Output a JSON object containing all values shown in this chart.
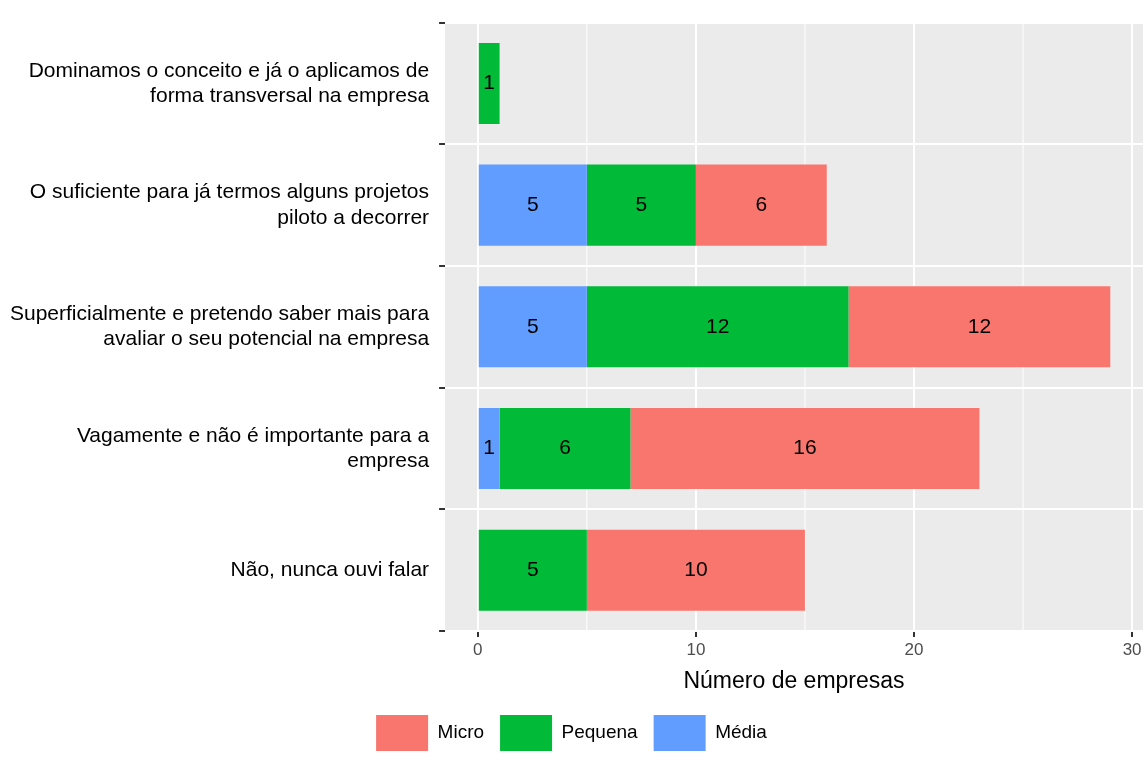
{
  "chart_data": {
    "type": "bar",
    "orientation": "horizontal",
    "stacked": true,
    "categories": [
      "Dominamos o conceito e já o aplicamos de forma transversal na empresa",
      "O suficiente para já termos alguns projetos piloto a decorrer",
      "Superficialmente e pretendo saber mais para avaliar o seu potencial na empresa",
      "Vagamente e não é importante para a empresa",
      "Não, nunca ouvi falar"
    ],
    "series": [
      {
        "name": "Média",
        "color": "#619cff",
        "values": [
          null,
          5,
          5,
          1,
          null
        ]
      },
      {
        "name": "Pequena",
        "color": "#00ba38",
        "values": [
          1,
          5,
          12,
          6,
          5
        ]
      },
      {
        "name": "Micro",
        "color": "#f8766d",
        "values": [
          null,
          6,
          12,
          16,
          10
        ]
      }
    ],
    "xlabel": "Número de empresas",
    "xlim": [
      -1.5,
      30.5
    ],
    "xticks": [
      0,
      10,
      20,
      30
    ],
    "grid": true,
    "legend": "bottom",
    "data_labels": true
  }
}
